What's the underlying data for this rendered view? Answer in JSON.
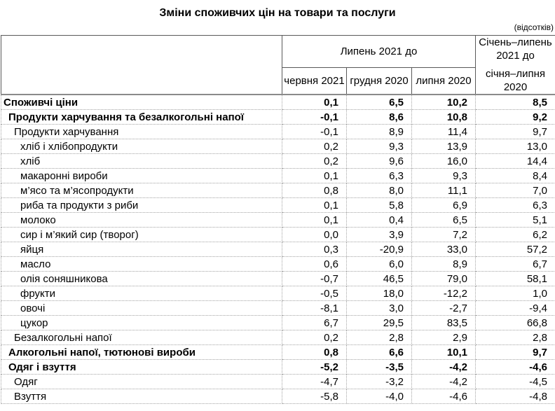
{
  "title": "Зміни споживчих цін на товари та послуги",
  "unit_note": "(відсотків)",
  "colors": {
    "header_border": "#595959",
    "body_gridline": "#a3a3a3",
    "text": "#000000",
    "background": "#ffffff"
  },
  "header": {
    "group_label": "Липень 2021 до",
    "sub_columns": [
      "червня 2021",
      "грудня 2020",
      "липня 2020"
    ],
    "period_label_line1": "Січень–липень 2021 до",
    "period_label_line2": "січня–липня 2020"
  },
  "rows": [
    {
      "label": "Споживчі ціни",
      "indent": 0,
      "bold": true,
      "values": [
        "0,1",
        "6,5",
        "10,2",
        "8,5"
      ]
    },
    {
      "label": "Продукти харчування та безалкогольні напої",
      "indent": 1,
      "bold": true,
      "values": [
        "-0,1",
        "8,6",
        "10,8",
        "9,2"
      ]
    },
    {
      "label": "Продукти харчування",
      "indent": 2,
      "bold": false,
      "values": [
        "-0,1",
        "8,9",
        "11,4",
        "9,7"
      ]
    },
    {
      "label": "хліб і хлібопродукти",
      "indent": 3,
      "bold": false,
      "values": [
        "0,2",
        "9,3",
        "13,9",
        "13,0"
      ]
    },
    {
      "label": "хліб",
      "indent": 3,
      "bold": false,
      "values": [
        "0,2",
        "9,6",
        "16,0",
        "14,4"
      ]
    },
    {
      "label": "макаронні вироби",
      "indent": 3,
      "bold": false,
      "values": [
        "0,1",
        "6,3",
        "9,3",
        "8,4"
      ]
    },
    {
      "label": "м’ясо та м’ясопродукти",
      "indent": 3,
      "bold": false,
      "values": [
        "0,8",
        "8,0",
        "11,1",
        "7,0"
      ]
    },
    {
      "label": "риба та продукти з риби",
      "indent": 3,
      "bold": false,
      "values": [
        "0,1",
        "5,8",
        "6,9",
        "6,3"
      ]
    },
    {
      "label": "молоко",
      "indent": 3,
      "bold": false,
      "values": [
        "0,1",
        "0,4",
        "6,5",
        "5,1"
      ]
    },
    {
      "label": "сир і м’який сир (творог)",
      "indent": 3,
      "bold": false,
      "values": [
        "0,0",
        "3,9",
        "7,2",
        "6,2"
      ]
    },
    {
      "label": "яйця",
      "indent": 3,
      "bold": false,
      "values": [
        "0,3",
        "-20,9",
        "33,0",
        "57,2"
      ]
    },
    {
      "label": "масло",
      "indent": 3,
      "bold": false,
      "values": [
        "0,6",
        "6,0",
        "8,9",
        "6,7"
      ]
    },
    {
      "label": "олія соняшникова",
      "indent": 3,
      "bold": false,
      "values": [
        "-0,7",
        "46,5",
        "79,0",
        "58,1"
      ]
    },
    {
      "label": "фрукти",
      "indent": 3,
      "bold": false,
      "values": [
        "-0,5",
        "18,0",
        "-12,2",
        "1,0"
      ]
    },
    {
      "label": "овочі",
      "indent": 3,
      "bold": false,
      "values": [
        "-8,1",
        "3,0",
        "-2,7",
        "-9,4"
      ]
    },
    {
      "label": "цукор",
      "indent": 3,
      "bold": false,
      "values": [
        "6,7",
        "29,5",
        "83,5",
        "66,8"
      ]
    },
    {
      "label": "Безалкогольні напої",
      "indent": 2,
      "bold": false,
      "values": [
        "0,2",
        "2,8",
        "2,9",
        "2,8"
      ]
    },
    {
      "label": "Алкогольні напої, тютюнові вироби",
      "indent": 1,
      "bold": true,
      "values": [
        "0,8",
        "6,6",
        "10,1",
        "9,7"
      ]
    },
    {
      "label": "Одяг і взуття",
      "indent": 1,
      "bold": true,
      "values": [
        "-5,2",
        "-3,5",
        "-4,2",
        "-4,6"
      ]
    },
    {
      "label": "Одяг",
      "indent": 2,
      "bold": false,
      "values": [
        "-4,7",
        "-3,2",
        "-4,2",
        "-4,5"
      ]
    },
    {
      "label": "Взуття",
      "indent": 2,
      "bold": false,
      "values": [
        "-5,8",
        "-4,0",
        "-4,6",
        "-4,8"
      ]
    }
  ]
}
